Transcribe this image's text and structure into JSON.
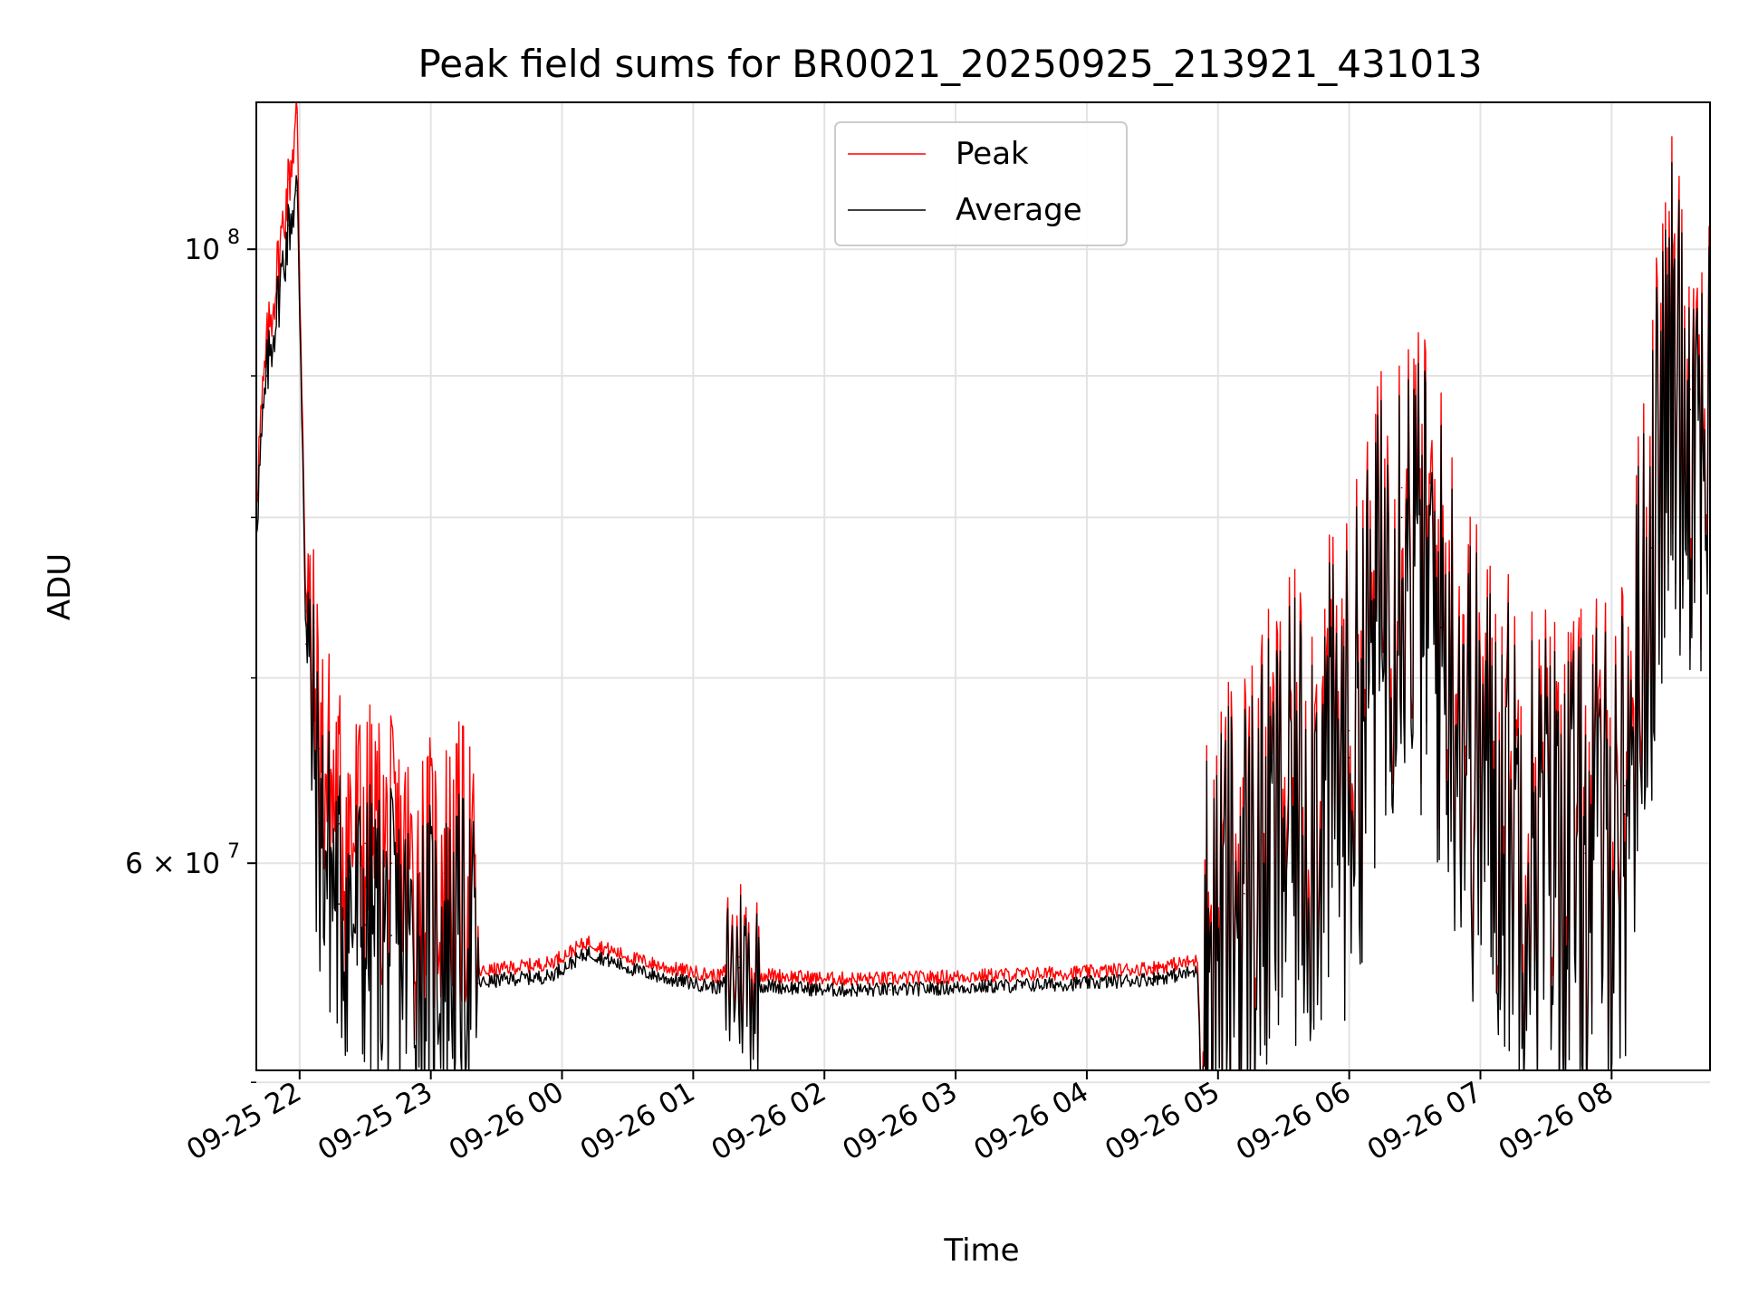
{
  "chart_data": {
    "type": "line",
    "title": "Peak field sums for BR0021_20250925_213921_431013",
    "xlabel": "Time",
    "ylabel": "ADU",
    "yscale": "log",
    "ylim": [
      50500000,
      113000000
    ],
    "xlim_hours": [
      -0.33,
      10.75
    ],
    "grid": true,
    "legend_position": "top-center",
    "x_ticks": [
      {
        "hour": 0,
        "label": "09-25 22"
      },
      {
        "hour": 1,
        "label": "09-25 23"
      },
      {
        "hour": 2,
        "label": "09-26 00"
      },
      {
        "hour": 3,
        "label": "09-26 01"
      },
      {
        "hour": 4,
        "label": "09-26 02"
      },
      {
        "hour": 5,
        "label": "09-26 03"
      },
      {
        "hour": 6,
        "label": "09-26 04"
      },
      {
        "hour": 7,
        "label": "09-26 05"
      },
      {
        "hour": 8,
        "label": "09-26 06"
      },
      {
        "hour": 9,
        "label": "09-26 07"
      },
      {
        "hour": 10,
        "label": "09-26 08"
      }
    ],
    "y_major_ticks": [
      {
        "value": 100000000,
        "base": "10",
        "exp": "8"
      },
      {
        "value": 60000000,
        "base": "6 × 10",
        "exp": "7"
      }
    ],
    "y_minor_ticks": [
      50000000,
      70000000,
      80000000,
      90000000
    ],
    "series": [
      {
        "name": "Peak",
        "color": "#ff0000",
        "points": [
          [
            -0.33,
            82000000
          ],
          [
            -0.25,
            92000000
          ],
          [
            -0.15,
            100000000
          ],
          [
            -0.08,
            106000000
          ],
          [
            -0.02,
            112000000
          ],
          [
            0.0,
            98000000
          ],
          [
            0.05,
            74000000
          ],
          [
            0.15,
            66000000
          ],
          [
            0.3,
            62000000
          ],
          [
            0.5,
            61000000
          ],
          [
            0.7,
            60000000
          ],
          [
            0.9,
            59000000
          ],
          [
            1.1,
            59500000
          ],
          [
            1.3,
            60000000
          ],
          [
            1.36,
            54800000
          ],
          [
            1.6,
            55000000
          ],
          [
            1.9,
            55200000
          ],
          [
            2.2,
            56200000
          ],
          [
            2.5,
            55500000
          ],
          [
            2.8,
            55000000
          ],
          [
            3.0,
            54800000
          ],
          [
            3.2,
            54600000
          ],
          [
            3.35,
            55500000
          ],
          [
            3.5,
            54700000
          ],
          [
            4.0,
            54500000
          ],
          [
            4.5,
            54500000
          ],
          [
            5.0,
            54600000
          ],
          [
            5.5,
            54700000
          ],
          [
            6.0,
            54800000
          ],
          [
            6.5,
            55000000
          ],
          [
            6.83,
            55300000
          ],
          [
            7.2,
            60000000
          ],
          [
            7.6,
            64000000
          ],
          [
            8.0,
            67000000
          ],
          [
            8.4,
            82000000
          ],
          [
            8.7,
            75000000
          ],
          [
            9.0,
            66000000
          ],
          [
            9.4,
            63000000
          ],
          [
            9.8,
            62000000
          ],
          [
            10.1,
            64000000
          ],
          [
            10.3,
            80000000
          ],
          [
            10.45,
            92000000
          ],
          [
            10.6,
            89000000
          ],
          [
            10.75,
            88000000
          ]
        ]
      },
      {
        "name": "Average",
        "color": "#000000",
        "points": [
          [
            -0.33,
            80000000
          ],
          [
            -0.25,
            90000000
          ],
          [
            -0.15,
            97000000
          ],
          [
            -0.08,
            102000000
          ],
          [
            -0.02,
            105000000
          ],
          [
            0.0,
            96000000
          ],
          [
            0.05,
            72000000
          ],
          [
            0.15,
            62000000
          ],
          [
            0.3,
            58000000
          ],
          [
            0.5,
            57000000
          ],
          [
            0.7,
            56500000
          ],
          [
            0.9,
            56000000
          ],
          [
            1.1,
            56000000
          ],
          [
            1.3,
            56500000
          ],
          [
            1.36,
            54300000
          ],
          [
            1.6,
            54500000
          ],
          [
            1.9,
            54600000
          ],
          [
            2.2,
            55700000
          ],
          [
            2.5,
            55000000
          ],
          [
            2.8,
            54500000
          ],
          [
            3.0,
            54300000
          ],
          [
            3.2,
            54100000
          ],
          [
            3.35,
            55000000
          ],
          [
            3.5,
            54200000
          ],
          [
            4.0,
            54000000
          ],
          [
            4.5,
            54000000
          ],
          [
            5.0,
            54100000
          ],
          [
            5.5,
            54200000
          ],
          [
            6.0,
            54300000
          ],
          [
            6.5,
            54500000
          ],
          [
            6.83,
            54800000
          ],
          [
            7.2,
            58500000
          ],
          [
            7.6,
            62500000
          ],
          [
            8.0,
            65500000
          ],
          [
            8.4,
            80000000
          ],
          [
            8.7,
            73000000
          ],
          [
            9.0,
            64500000
          ],
          [
            9.4,
            61500000
          ],
          [
            9.8,
            60500000
          ],
          [
            10.1,
            62500000
          ],
          [
            10.3,
            78000000
          ],
          [
            10.45,
            90000000
          ],
          [
            10.6,
            87500000
          ],
          [
            10.75,
            86500000
          ]
        ]
      }
    ]
  }
}
